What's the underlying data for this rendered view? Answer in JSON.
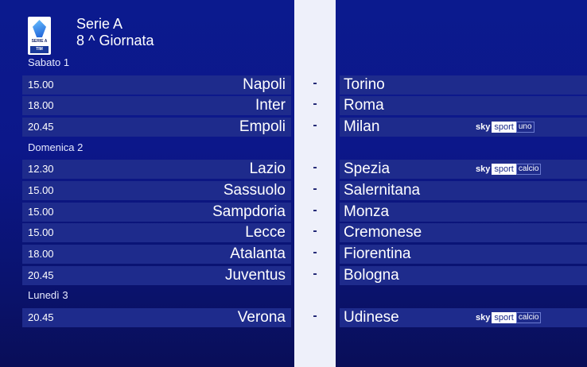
{
  "header": {
    "league": "Serie A",
    "round": "8 ^ Giornata",
    "logo_text": "SERIE A",
    "logo_sponsor": "TIM"
  },
  "days": [
    {
      "label": "Sabato 1",
      "matches": [
        {
          "time": "15.00",
          "home": "Napoli",
          "away": "Torino",
          "channel": null
        },
        {
          "time": "18.00",
          "home": "Inter",
          "away": "Roma",
          "channel": null
        },
        {
          "time": "20.45",
          "home": "Empoli",
          "away": "Milan",
          "channel": "uno"
        }
      ]
    },
    {
      "label": "Domenica 2",
      "matches": [
        {
          "time": "12.30",
          "home": "Lazio",
          "away": "Spezia",
          "channel": "calcio"
        },
        {
          "time": "15.00",
          "home": "Sassuolo",
          "away": "Salernitana",
          "channel": null
        },
        {
          "time": "15.00",
          "home": "Sampdoria",
          "away": "Monza",
          "channel": null
        },
        {
          "time": "15.00",
          "home": "Lecce",
          "away": "Cremonese",
          "channel": null
        },
        {
          "time": "18.00",
          "home": "Atalanta",
          "away": "Fiorentina",
          "channel": null
        },
        {
          "time": "20.45",
          "home": "Juventus",
          "away": "Bologna",
          "channel": null
        }
      ]
    },
    {
      "label": "Lunedì 3",
      "matches": [
        {
          "time": "20.45",
          "home": "Verona",
          "away": "Udinese",
          "channel": "calcio"
        }
      ]
    }
  ],
  "separator": "-",
  "channel_brand": {
    "sky": "sky",
    "sport": "sport"
  }
}
